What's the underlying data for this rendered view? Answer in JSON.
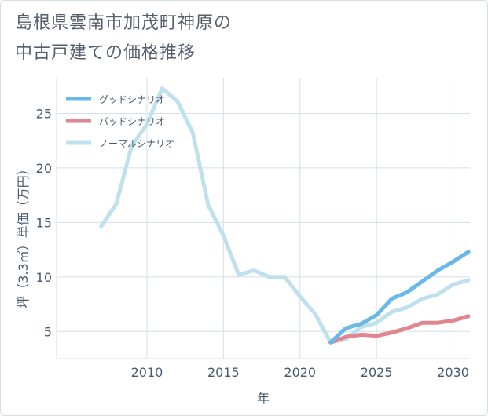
{
  "title": {
    "line1": "島根県雲南市加茂町神原の",
    "line2": "中古戸建ての価格推移"
  },
  "chart_data": {
    "type": "line",
    "title": "島根県雲南市加茂町神原の中古戸建ての価格推移",
    "xlabel": "年",
    "ylabel": "坪（3.3㎡）単価（万円）",
    "xlim": [
      2004.1,
      2031.1
    ],
    "ylim": [
      2.5,
      28.2
    ],
    "xticks": [
      2010,
      2015,
      2020,
      2025,
      2030
    ],
    "yticks": [
      5,
      10,
      15,
      20,
      25
    ],
    "grid": true,
    "legend_position": "top-left",
    "series": [
      {
        "name": "グッドシナリオ",
        "color": "#6ab8ea",
        "x": [
          2022,
          2023,
          2024,
          2025,
          2026,
          2027,
          2028,
          2029,
          2030,
          2031
        ],
        "values": [
          4.0,
          5.3,
          5.7,
          6.5,
          8.0,
          8.6,
          9.6,
          10.6,
          11.4,
          12.3
        ]
      },
      {
        "name": "バッドシナリオ",
        "color": "#e0868f",
        "x": [
          2022,
          2023,
          2024,
          2025,
          2026,
          2027,
          2028,
          2029,
          2030,
          2031
        ],
        "values": [
          4.0,
          4.5,
          4.7,
          4.6,
          4.9,
          5.3,
          5.8,
          5.8,
          6.0,
          6.4
        ]
      },
      {
        "name": "ノーマルシナリオ",
        "color": "#bfe1ee",
        "x": [
          2007,
          2008,
          2009,
          2010,
          2011,
          2012,
          2013,
          2014,
          2015,
          2016,
          2017,
          2018,
          2019,
          2020,
          2021,
          2022,
          2023,
          2024,
          2025,
          2026,
          2027,
          2028,
          2029,
          2030,
          2031
        ],
        "values": [
          14.6,
          16.7,
          22.0,
          24.0,
          27.3,
          26.1,
          23.2,
          16.6,
          13.8,
          10.2,
          10.6,
          10.0,
          10.0,
          8.2,
          6.6,
          4.0,
          4.3,
          5.4,
          5.8,
          6.8,
          7.2,
          8.0,
          8.4,
          9.3,
          9.7
        ]
      }
    ]
  }
}
